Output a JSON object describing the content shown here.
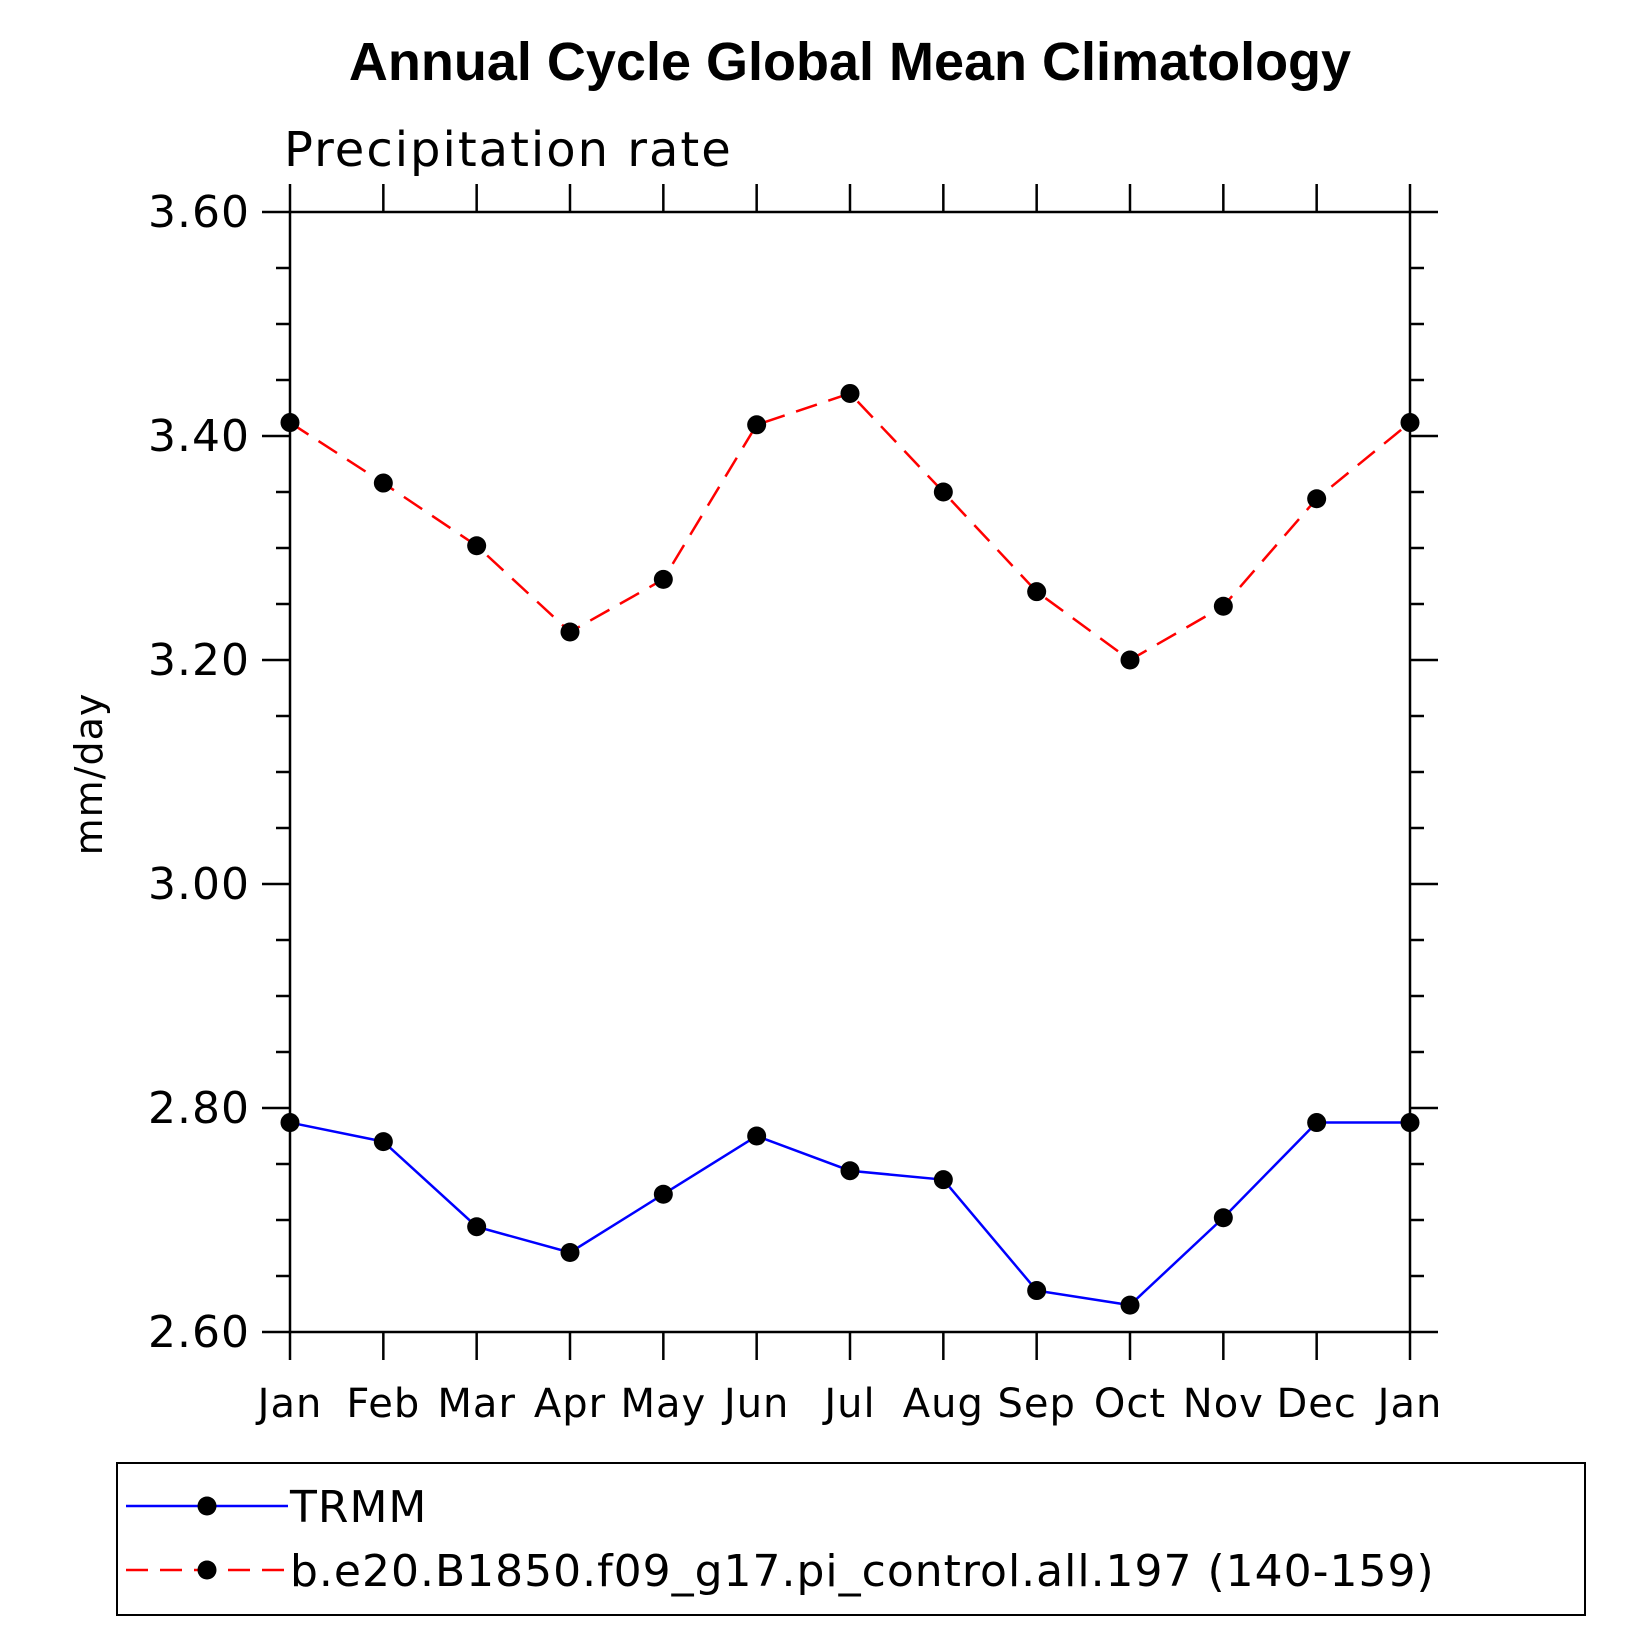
{
  "chart_data": {
    "type": "line",
    "title": "Annual Cycle Global Mean Climatology",
    "subtitle": "Precipitation rate",
    "xlabel": "",
    "ylabel": "mm/day",
    "categories": [
      "Jan",
      "Feb",
      "Mar",
      "Apr",
      "May",
      "Jun",
      "Jul",
      "Aug",
      "Sep",
      "Oct",
      "Nov",
      "Dec",
      "Jan"
    ],
    "ylim": [
      2.6,
      3.6
    ],
    "yticks": [
      "2.60",
      "2.80",
      "3.00",
      "3.20",
      "3.40",
      "3.60"
    ],
    "ytick_values": [
      2.6,
      2.8,
      3.0,
      3.2,
      3.4,
      3.6
    ],
    "grid": false,
    "legend_position": "bottom",
    "series": [
      {
        "name": "TRMM",
        "color": "#0000ff",
        "line_style": "solid",
        "marker": "filled-circle",
        "values": [
          2.787,
          2.77,
          2.694,
          2.671,
          2.723,
          2.775,
          2.744,
          2.736,
          2.637,
          2.624,
          2.702,
          2.787,
          2.787
        ]
      },
      {
        "name": "b.e20.B1850.f09_g17.pi_control.all.197 (140-159)",
        "color": "#ff0000",
        "line_style": "dashed",
        "marker": "filled-circle",
        "values": [
          3.412,
          3.358,
          3.302,
          3.225,
          3.272,
          3.41,
          3.438,
          3.35,
          3.261,
          3.2,
          3.248,
          3.344,
          3.412
        ]
      }
    ]
  }
}
